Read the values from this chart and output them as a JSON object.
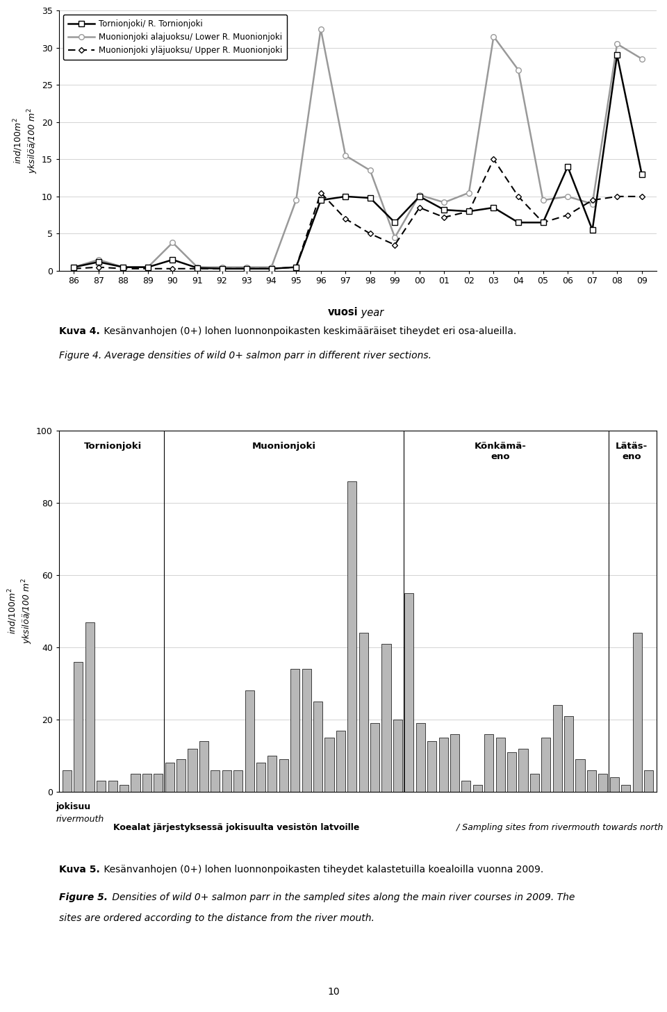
{
  "line_years_num": [
    1986,
    1987,
    1988,
    1989,
    1990,
    1991,
    1992,
    1993,
    1994,
    1995,
    1996,
    1997,
    1998,
    1999,
    2000,
    2001,
    2002,
    2003,
    2004,
    2005,
    2006,
    2007,
    2008,
    2009
  ],
  "tornionjoki": [
    0.5,
    1.2,
    0.5,
    0.5,
    1.5,
    0.4,
    0.3,
    0.3,
    0.3,
    0.5,
    9.5,
    10.0,
    9.8,
    6.5,
    10.0,
    8.2,
    8.0,
    8.5,
    6.5,
    6.5,
    14.0,
    5.5,
    29.0,
    13.0
  ],
  "muonionjoki_lower": [
    0.5,
    1.5,
    0.5,
    0.5,
    3.8,
    0.5,
    0.5,
    0.5,
    0.5,
    9.5,
    32.5,
    15.5,
    13.5,
    4.5,
    10.2,
    9.2,
    10.5,
    31.5,
    27.0,
    9.5,
    10.0,
    9.0,
    30.5,
    28.5
  ],
  "muonionjoki_upper": [
    0.3,
    0.5,
    0.3,
    0.3,
    0.3,
    0.3,
    0.3,
    0.3,
    0.3,
    0.5,
    10.5,
    7.0,
    5.0,
    3.5,
    8.5,
    7.2,
    8.0,
    15.0,
    10.0,
    6.5,
    7.5,
    9.5,
    10.0,
    10.0
  ],
  "ylim_line": [
    0,
    35
  ],
  "yticks_line": [
    0,
    5,
    10,
    15,
    20,
    25,
    30,
    35
  ],
  "legend_tornio": "Tornionjoki/ R. Tornionjoki",
  "legend_lower": "Muonionjoki alajuoksu/ Lower R. Muonionjoki",
  "legend_upper": "Muonionjoki yläjuoksu/ Upper R. Muonionjoki",
  "bar_values": [
    6,
    36,
    47,
    3,
    3,
    2,
    5,
    5,
    5,
    8,
    9,
    12,
    14,
    6,
    6,
    6,
    28,
    8,
    10,
    9,
    34,
    34,
    25,
    15,
    17,
    86,
    44,
    19,
    41,
    20,
    55,
    19,
    14,
    15,
    16,
    3,
    2,
    16,
    15,
    11,
    12,
    5,
    15,
    24,
    21,
    9,
    6,
    5,
    4,
    2,
    44,
    6
  ],
  "bar_color": "#b8b8b8",
  "bar_ylim": [
    0,
    100
  ],
  "bar_yticks": [
    0,
    20,
    40,
    60,
    80,
    100
  ],
  "section_dividers_after": [
    8,
    29,
    47
  ],
  "section_centers": [
    4.0,
    19.0,
    38.0,
    49.5
  ],
  "section_labels": [
    "Tornionjoki",
    "Muonionjoki",
    "Könkämä-\neno",
    "Lätäs-\neno"
  ],
  "kuva4_label": "Kuva 4.",
  "kuva4_rest": " Kesänvanhojen (0+) lohen luonnonpoikasten keskimääräiset tiheydet eri osa-alueilla.",
  "figure4_text": "Figure 4. Average densities of wild 0+ salmon parr in different river sections.",
  "kuva5_label": "Kuva 5.",
  "kuva5_rest": " Kesänvanhojen (0+) lohen luonnonpoikasten tiheydet kalastetuilla koealoilla vuonna 2009.",
  "figure5_label": "Figure 5.",
  "figure5_rest": " Densities of wild 0+ salmon parr in the sampled sites along the main river courses in 2009. The",
  "figure5_line2": "sites are ordered according to the distance from the river mouth.",
  "xlabel_bar_bold": "Koealat järjestyksessä jokisuulta vesistön latvoille",
  "xlabel_bar_italic": " / Sampling sites from rivermouth towards north",
  "jokisuu_line1": "jokisuu",
  "jokisuu_line2": "rivermouth",
  "page_number": "10"
}
